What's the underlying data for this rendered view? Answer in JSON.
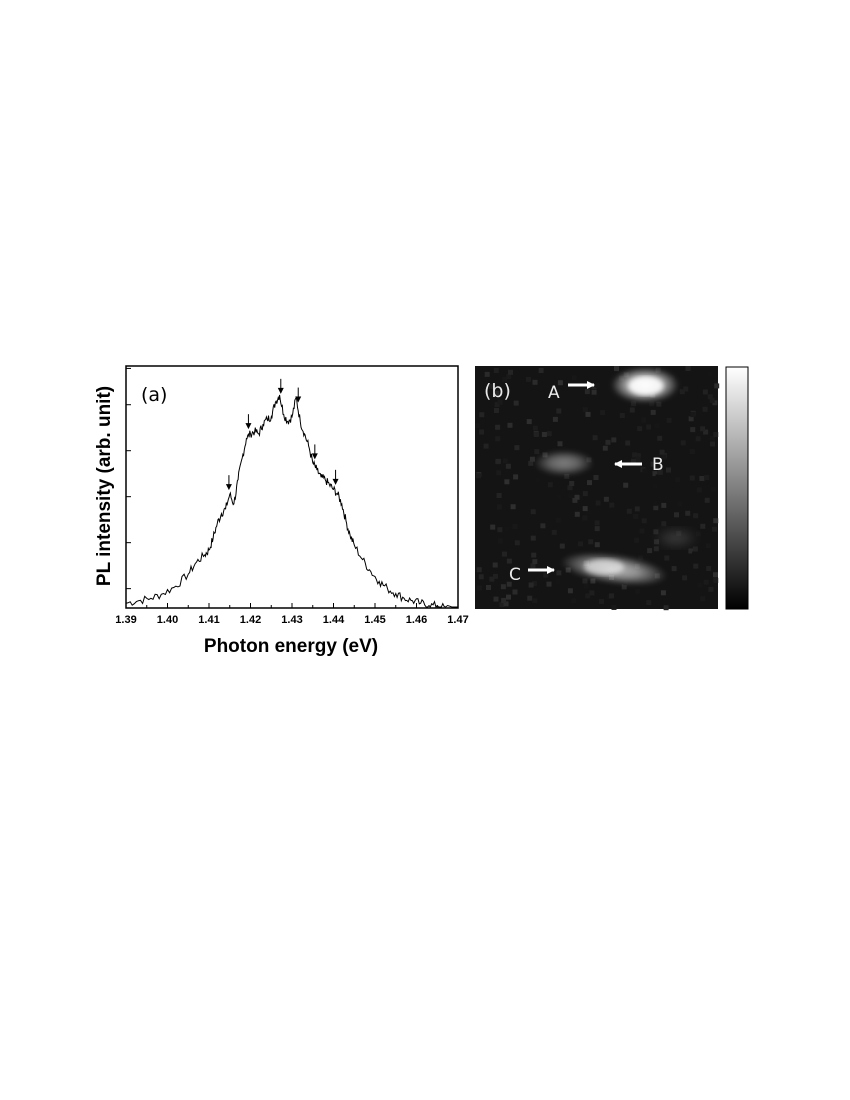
{
  "chart_data": [
    {
      "type": "line",
      "panel_label": "(a)",
      "xlabel": "Photon energy (eV)",
      "ylabel": "PL intensity (arb. unit)",
      "xlim": [
        1.39,
        1.47
      ],
      "ylim": [
        0,
        1.0
      ],
      "x_ticks": [
        "1.39",
        "1.40",
        "1.41",
        "1.42",
        "1.43",
        "1.44",
        "1.45",
        "1.46",
        "1.47"
      ],
      "y_tick_values": [
        0.08,
        0.27,
        0.46,
        0.65,
        0.84,
        0.99
      ],
      "y_tick_labels_shown": false,
      "line_color": "#000000",
      "series": [
        {
          "x": [
            1.39,
            1.393,
            1.396,
            1.399,
            1.402,
            1.405,
            1.407,
            1.409,
            1.41,
            1.411,
            1.412,
            1.413,
            1.414,
            1.415,
            1.416,
            1.417,
            1.418,
            1.419,
            1.42,
            1.421,
            1.422,
            1.423,
            1.424,
            1.425,
            1.426,
            1.427,
            1.428,
            1.429,
            1.43,
            1.431,
            1.432,
            1.433,
            1.434,
            1.435,
            1.436,
            1.437,
            1.438,
            1.439,
            1.44,
            1.441,
            1.442,
            1.443,
            1.444,
            1.445,
            1.447,
            1.449,
            1.451,
            1.453,
            1.455,
            1.457,
            1.459,
            1.461,
            1.463,
            1.465,
            1.467,
            1.47
          ],
          "y": [
            0.02,
            0.03,
            0.04,
            0.06,
            0.09,
            0.14,
            0.19,
            0.22,
            0.24,
            0.29,
            0.35,
            0.39,
            0.41,
            0.47,
            0.43,
            0.53,
            0.62,
            0.7,
            0.72,
            0.73,
            0.72,
            0.76,
            0.78,
            0.79,
            0.85,
            0.88,
            0.8,
            0.77,
            0.79,
            0.87,
            0.77,
            0.72,
            0.67,
            0.6,
            0.57,
            0.54,
            0.53,
            0.51,
            0.49,
            0.47,
            0.43,
            0.36,
            0.3,
            0.26,
            0.2,
            0.15,
            0.11,
            0.08,
            0.06,
            0.04,
            0.03,
            0.02,
            0.01,
            0.01,
            0.0,
            0.0
          ]
        }
      ],
      "peak_markers_x": [
        1.4148,
        1.4195,
        1.4273,
        1.4315,
        1.4355,
        1.4405
      ]
    },
    {
      "type": "heatmap",
      "panel_label": "(b)",
      "colormap": [
        "#000000",
        "#ffffff"
      ],
      "background_value": 0.08,
      "spots": [
        {
          "label": "A",
          "value": 1.0,
          "arrow_direction": "right"
        },
        {
          "label": "B",
          "value": 0.55,
          "arrow_direction": "left"
        },
        {
          "label": "C",
          "value": 0.9,
          "arrow_direction": "right"
        }
      ],
      "colorbar": {
        "min_color": "#000000",
        "max_color": "#ffffff"
      }
    }
  ]
}
